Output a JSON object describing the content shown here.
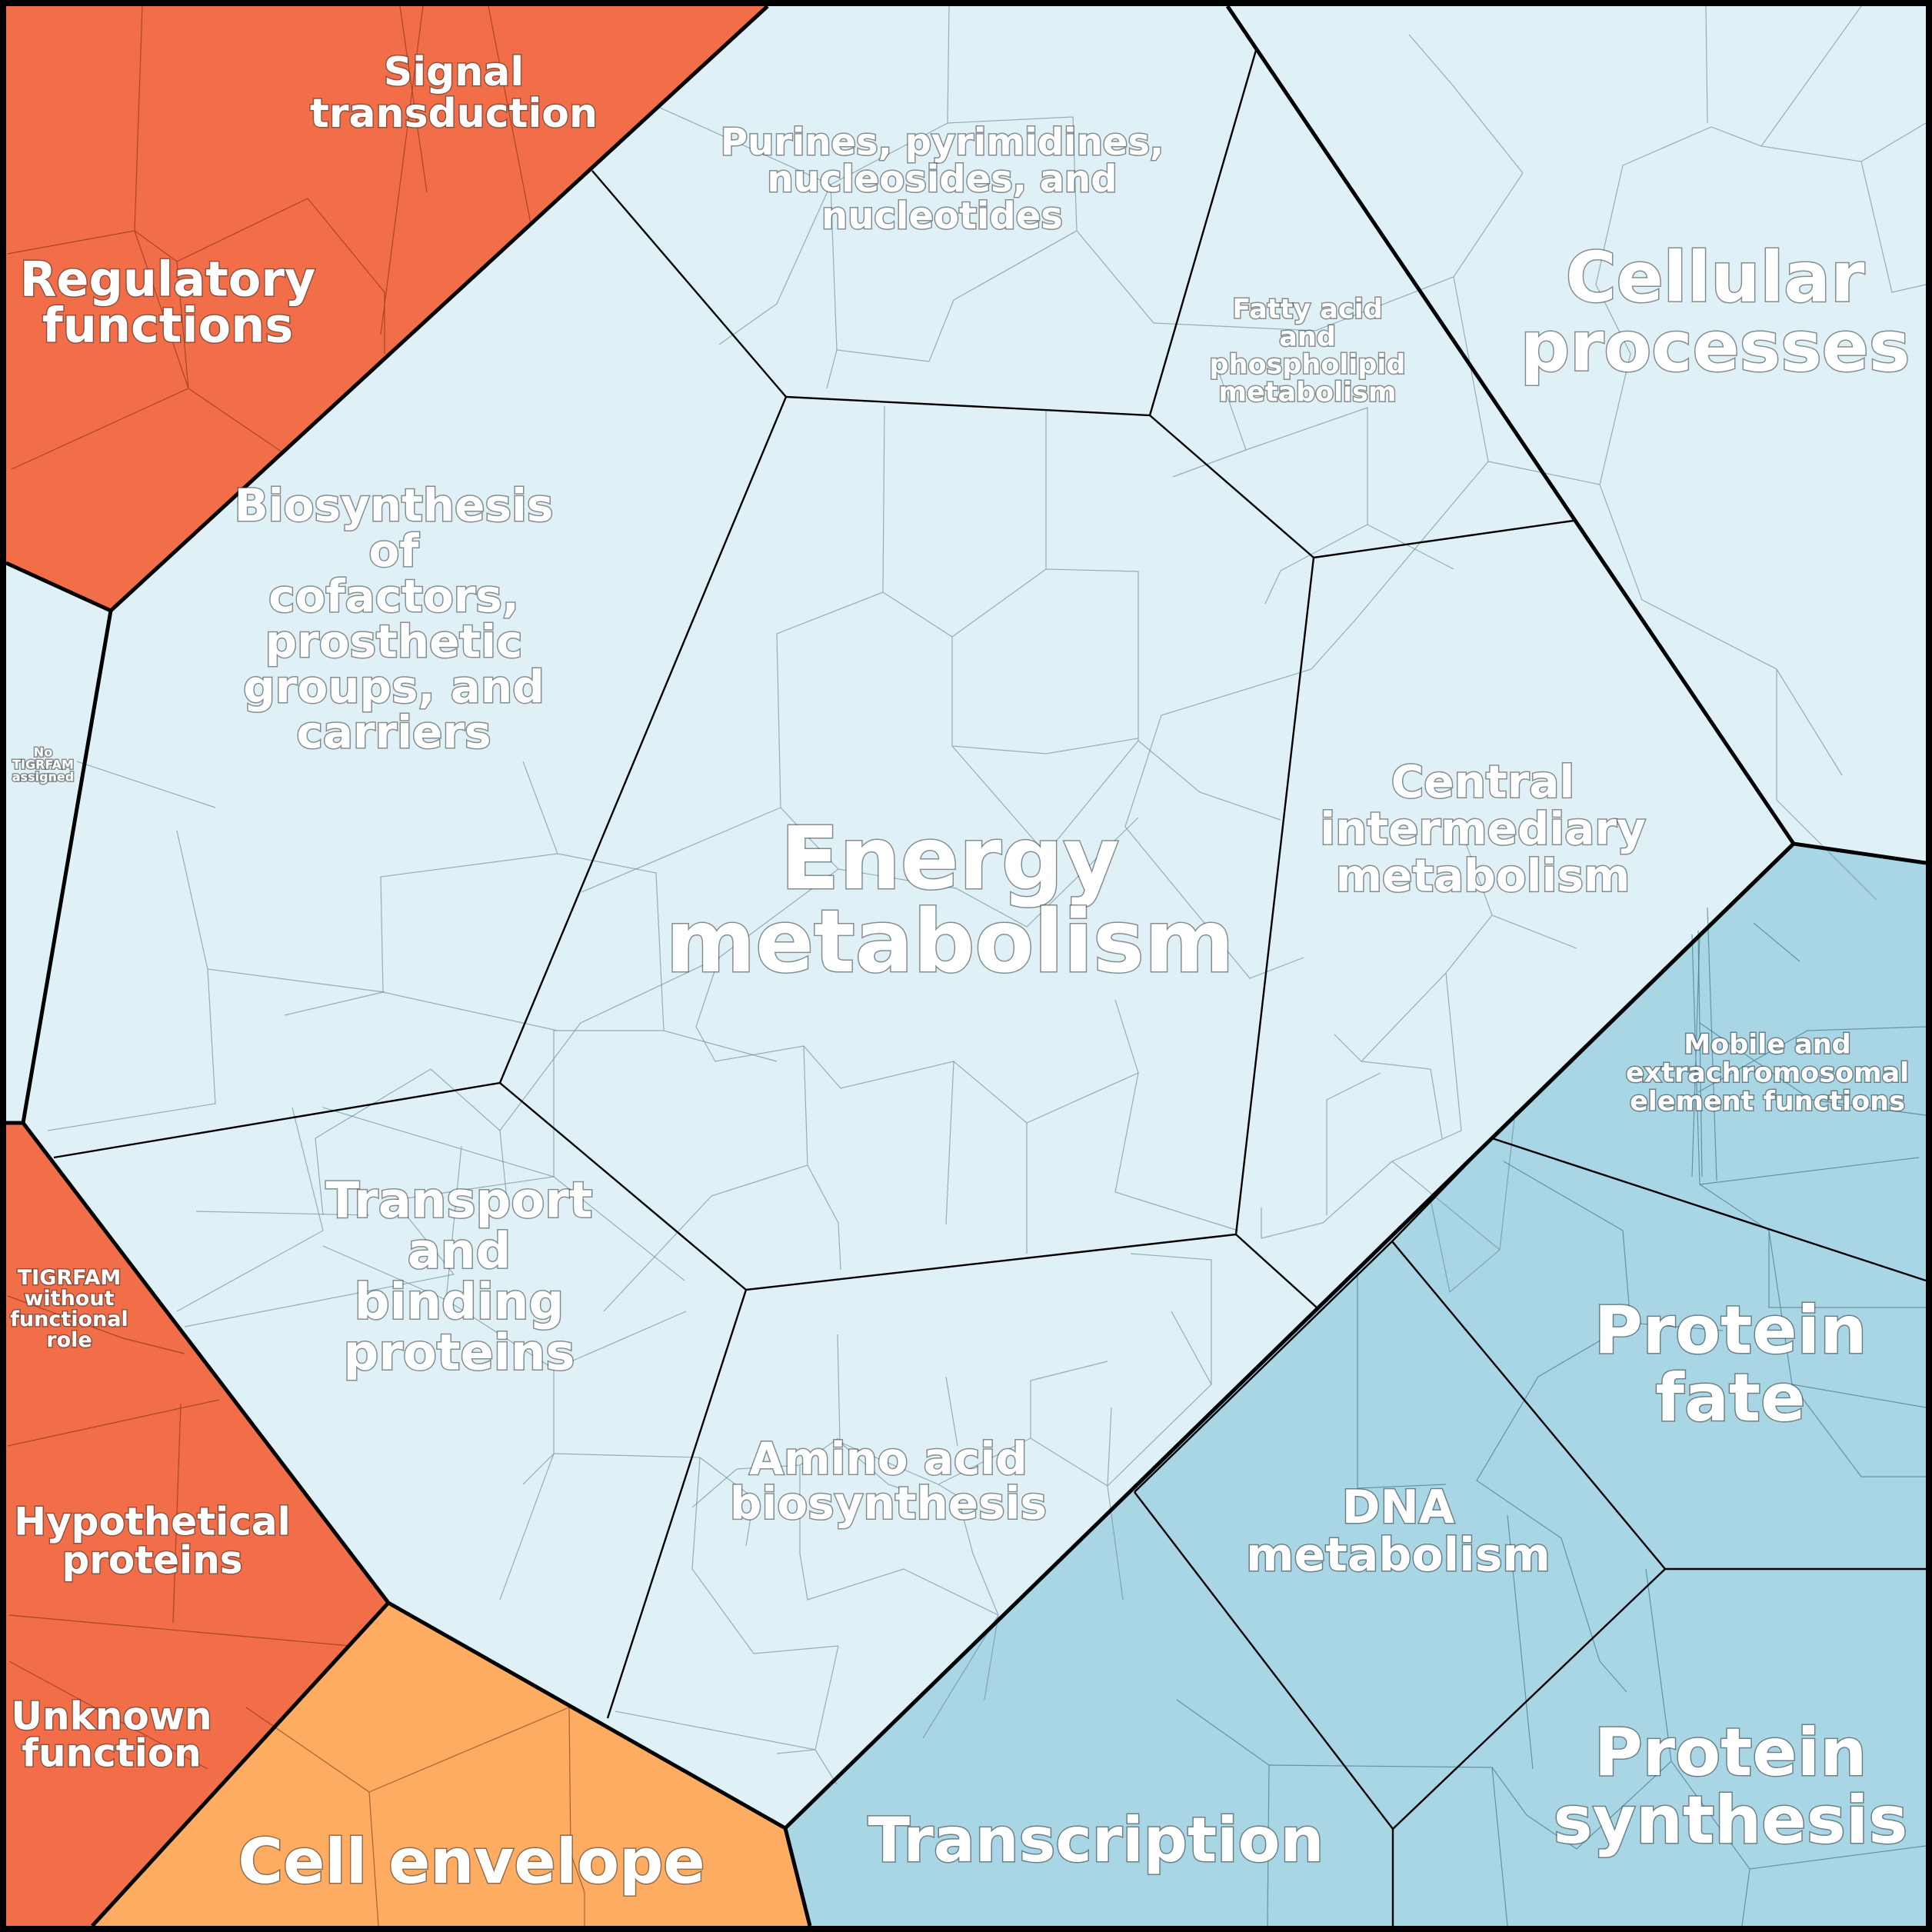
{
  "colors": {
    "metabolism": "#dff1f7",
    "regulatory": "#f26e48",
    "cell_envelope": "#fdac62",
    "information": "#a9d6e5",
    "border": "#000000"
  },
  "labels": {
    "energy": [
      "Energy",
      "metabolism"
    ],
    "cellular": [
      "Cellular",
      "processes"
    ],
    "regulatory": [
      "Regulatory",
      "functions"
    ],
    "signal": [
      "Signal",
      "transduction"
    ],
    "purines": [
      "Purines, pyrimidines,",
      "nucleosides, and",
      "nucleotides"
    ],
    "fatty": [
      "Fatty acid",
      "and",
      "phospholipid",
      "metabolism"
    ],
    "biosynthesis": [
      "Biosynthesis",
      "of",
      "cofactors,",
      "prosthetic",
      "groups, and",
      "carriers"
    ],
    "notigr": [
      "No",
      "TIGRFAM",
      "assigned"
    ],
    "central": [
      "Central",
      "intermediary",
      "metabolism"
    ],
    "mobile": [
      "Mobile and",
      "extrachromosomal",
      "element functions"
    ],
    "transport": [
      "Transport",
      "and",
      "binding",
      "proteins"
    ],
    "tigrfam_without": [
      "TIGRFAM",
      "without",
      "functional",
      "role"
    ],
    "hypothetical": [
      "Hypothetical",
      "proteins"
    ],
    "unknown": [
      "Unknown",
      "function"
    ],
    "amino": [
      "Amino acid",
      "biosynthesis"
    ],
    "protein_fate": [
      "Protein",
      "fate"
    ],
    "dna": [
      "DNA",
      "metabolism"
    ],
    "protein_synthesis": [
      "Protein",
      "synthesis"
    ],
    "transcription": [
      "Transcription"
    ],
    "cell_envelope": [
      "Cell envelope"
    ]
  }
}
